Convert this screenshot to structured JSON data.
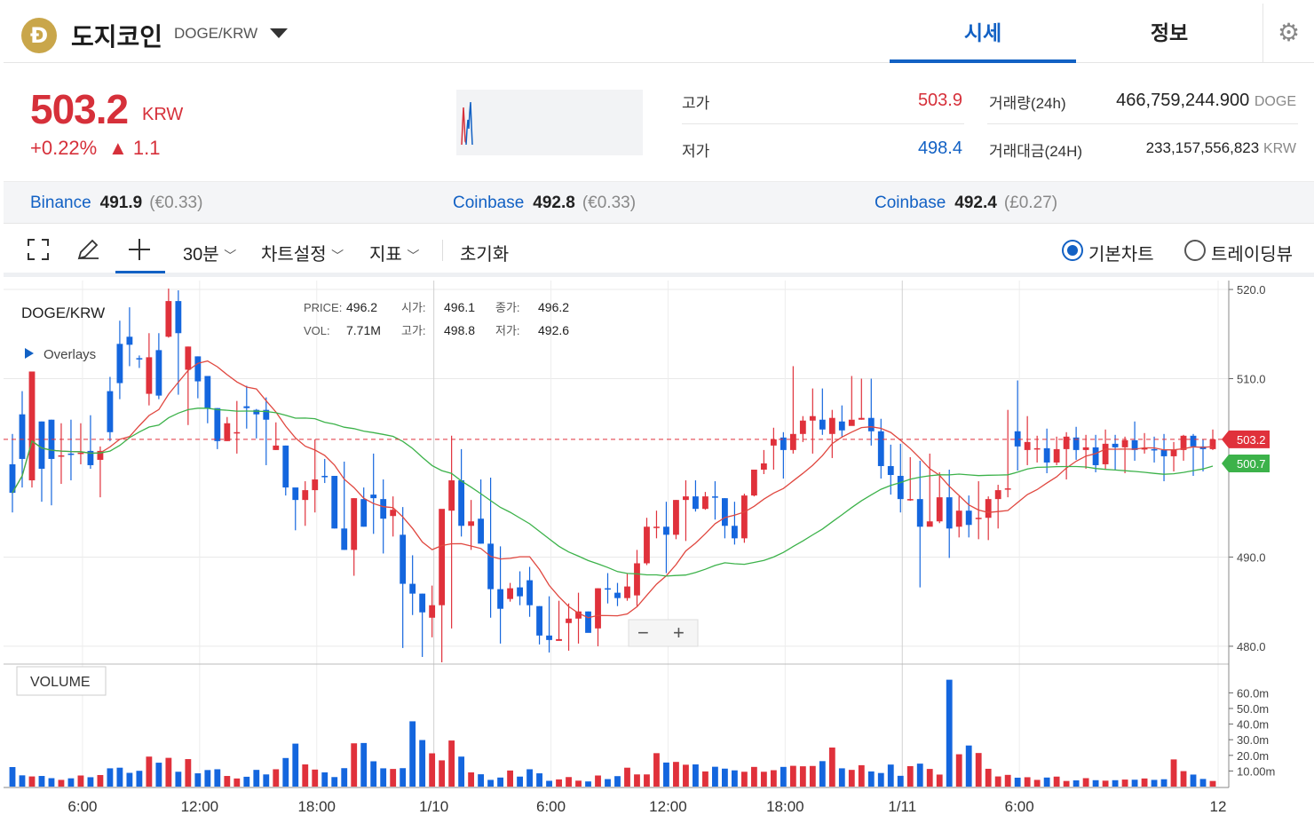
{
  "header": {
    "coin_symbol": "Đ",
    "coin_name": "도지코인",
    "pair": "DOGE/KRW",
    "tabs": [
      {
        "label": "시세",
        "active": true
      },
      {
        "label": "정보",
        "active": false
      }
    ]
  },
  "price": {
    "current": "503.2",
    "unit": "KRW",
    "change_pct": "+0.22%",
    "change_amt": "▲ 1.1"
  },
  "stats": {
    "high_label": "고가",
    "high_value": "503.9",
    "low_label": "저가",
    "low_value": "498.4",
    "volume_label": "거래량(24h)",
    "volume_value": "466,759,244.900",
    "volume_unit": "DOGE",
    "amount_label": "거래대금(24H)",
    "amount_value": "233,157,556,823",
    "amount_unit": "KRW"
  },
  "exchanges": [
    {
      "name": "Binance",
      "price": "491.9",
      "sub": "(€0.33)"
    },
    {
      "name": "Coinbase",
      "price": "492.8",
      "sub": "(€0.33)"
    },
    {
      "name": "Coinbase",
      "price": "492.4",
      "sub": "(£0.27)"
    }
  ],
  "toolbar": {
    "interval": "30분",
    "chart_settings": "차트설정",
    "indicators": "지표",
    "reset": "초기화",
    "basic_chart": "기본차트",
    "trading_view": "트레이딩뷰"
  },
  "chart_data": {
    "type": "candlestick",
    "title": "DOGE/KRW",
    "overlays_label": "Overlays",
    "volume_label": "VOLUME",
    "legend": {
      "price_label": "PRICE:",
      "price": "496.2",
      "open_label": "시가:",
      "open": "496.1",
      "close_label": "종가:",
      "close": "496.2",
      "vol_label": "VOL:",
      "vol": "7.71M",
      "high_label": "고가:",
      "high": "498.8",
      "low_label": "저가:",
      "low": "492.6"
    },
    "y_ticks": [
      "520.0",
      "510.0",
      "490.0",
      "480.0"
    ],
    "y_range": [
      478.0,
      521.0
    ],
    "current_price_tag": "503.2",
    "ma_tag": "500.7",
    "volume_ticks": [
      "60.0m",
      "50.0m",
      "40.0m",
      "30.0m",
      "20.0m",
      "10.00m"
    ],
    "x_ticks": [
      "6:00",
      "12:00",
      "18:00",
      "1/10",
      "6:00",
      "12:00",
      "18:00",
      "1/11",
      "6:00",
      "12"
    ],
    "zoom_out": "−",
    "zoom_in": "+",
    "series": [
      {
        "name": "MA short",
        "color": "#e0473f"
      },
      {
        "name": "MA long",
        "color": "#3cb24a"
      }
    ],
    "candles": [
      [
        500.4,
        497.2,
        503.8,
        495.0
      ],
      [
        506.0,
        501.0,
        508.6,
        497.8
      ],
      [
        498.6,
        510.8,
        510.8,
        497.8
      ],
      [
        505.2,
        499.9,
        505.2,
        496.2
      ],
      [
        505.4,
        501.0,
        505.4,
        495.8
      ],
      [
        501.4,
        501.4,
        505.0,
        498.2
      ],
      [
        501.6,
        501.5,
        505.4,
        498.6
      ],
      [
        501.7,
        501.7,
        505.0,
        500.4
      ],
      [
        501.9,
        500.3,
        505.9,
        499.9
      ],
      [
        500.9,
        501.9,
        502.4,
        496.7
      ],
      [
        508.6,
        504.0,
        510.2,
        503.0
      ],
      [
        513.9,
        509.5,
        516.5,
        507.7
      ],
      [
        514.7,
        513.8,
        518.0,
        511.4
      ],
      [
        512.3,
        512.2,
        512.6,
        511.2
      ],
      [
        508.3,
        512.4,
        515.1,
        507.0
      ],
      [
        513.2,
        508.1,
        515.1,
        507.7
      ],
      [
        514.7,
        518.7,
        520.1,
        514.6
      ],
      [
        518.7,
        515.1,
        519.9,
        508.2
      ],
      [
        511.0,
        513.6,
        513.6,
        504.8
      ],
      [
        512.5,
        509.7,
        512.5,
        507.8
      ],
      [
        510.3,
        506.7,
        510.3,
        505.0
      ],
      [
        506.7,
        503.0,
        506.7,
        502.1
      ],
      [
        503.0,
        505.0,
        505.7,
        503.0
      ],
      [
        504.0,
        504.0,
        507.5,
        501.6
      ],
      [
        506.9,
        506.7,
        509.2,
        504.4
      ],
      [
        506.5,
        506.0,
        506.6,
        503.3
      ],
      [
        506.5,
        505.4,
        507.9,
        500.3
      ],
      [
        502.0,
        502.5,
        505.1,
        502.0
      ],
      [
        502.5,
        497.8,
        502.5,
        496.9
      ],
      [
        497.8,
        496.4,
        496.8,
        493.0
      ],
      [
        496.4,
        497.5,
        498.5,
        493.5
      ],
      [
        497.5,
        498.7,
        503.2,
        495.0
      ],
      [
        499.1,
        499.0,
        501.0,
        498.3
      ],
      [
        499.1,
        493.2,
        499.1,
        493.2
      ],
      [
        493.2,
        490.8,
        500.7,
        490.8
      ],
      [
        490.8,
        496.6,
        496.6,
        487.9
      ],
      [
        496.5,
        493.4,
        497.8,
        493.4
      ],
      [
        497.0,
        496.6,
        501.6,
        492.6
      ],
      [
        496.5,
        494.3,
        498.7,
        490.4
      ],
      [
        494.6,
        495.3,
        496.8,
        492.3
      ],
      [
        492.5,
        487.0,
        495.6,
        479.8
      ],
      [
        487.0,
        485.9,
        490.2,
        483.5
      ],
      [
        485.9,
        483.8,
        485.9,
        478.8
      ],
      [
        483.2,
        484.6,
        486.8,
        481.0
      ],
      [
        484.6,
        495.4,
        495.2,
        478.2
      ],
      [
        495.2,
        498.6,
        503.6,
        482.0
      ],
      [
        498.6,
        493.5,
        502.1,
        492.3
      ],
      [
        493.5,
        494.0,
        496.4,
        490.8
      ],
      [
        494.3,
        491.5,
        498.7,
        491.5
      ],
      [
        491.5,
        486.4,
        498.9,
        483.2
      ],
      [
        486.4,
        484.2,
        491.2,
        480.3
      ],
      [
        485.3,
        486.5,
        487.1,
        485.0
      ],
      [
        486.6,
        485.6,
        488.4,
        484.6
      ],
      [
        487.4,
        484.6,
        488.9,
        483.3
      ],
      [
        484.5,
        481.2,
        484.5,
        480.2
      ],
      [
        481.2,
        480.7,
        485.6,
        479.3
      ],
      [
        480.6,
        480.8,
        485.1,
        480.7
      ],
      [
        482.6,
        483.1,
        484.8,
        479.5
      ],
      [
        483.1,
        483.9,
        486.0,
        480.3
      ],
      [
        483.9,
        481.5,
        483.9,
        482.1
      ],
      [
        482.0,
        486.5,
        486.5,
        480.0
      ],
      [
        486.5,
        486.4,
        488.2,
        484.8
      ],
      [
        486.0,
        485.4,
        487.1,
        484.5
      ],
      [
        485.4,
        486.7,
        488.1,
        485.1
      ],
      [
        485.7,
        489.3,
        490.8,
        484.5
      ],
      [
        489.3,
        493.4,
        494.4,
        489.1
      ],
      [
        493.4,
        493.4,
        495.2,
        492.1
      ],
      [
        493.4,
        492.5,
        496.2,
        488.2
      ],
      [
        492.5,
        496.4,
        496.4,
        492.0
      ],
      [
        496.4,
        496.8,
        498.6,
        491.8
      ],
      [
        496.8,
        495.4,
        498.6,
        495.1
      ],
      [
        495.4,
        496.8,
        497.3,
        495.3
      ],
      [
        496.8,
        496.7,
        498.5,
        494.2
      ],
      [
        496.6,
        493.5,
        496.6,
        492.1
      ],
      [
        493.5,
        492.1,
        496.2,
        491.4
      ],
      [
        492.1,
        496.9,
        497.1,
        491.6
      ],
      [
        496.9,
        499.8,
        499.8,
        496.8
      ],
      [
        499.8,
        500.5,
        502.0,
        499.3
      ],
      [
        502.5,
        503.2,
        504.5,
        499.8
      ],
      [
        503.4,
        502.0,
        504.0,
        498.8
      ],
      [
        502.0,
        503.8,
        511.4,
        501.6
      ],
      [
        503.8,
        505.3,
        505.8,
        502.9
      ],
      [
        505.3,
        505.8,
        508.9,
        501.6
      ],
      [
        505.4,
        504.3,
        508.9,
        503.7
      ],
      [
        503.8,
        505.6,
        506.5,
        501.1
      ],
      [
        505.2,
        504.2,
        507.0,
        503.5
      ],
      [
        504.7,
        505.4,
        510.3,
        505.4
      ],
      [
        505.4,
        505.6,
        510.0,
        505.4
      ],
      [
        505.6,
        504.1,
        510.0,
        502.5
      ],
      [
        504.1,
        500.2,
        505.5,
        498.8
      ],
      [
        500.2,
        499.2,
        502.6,
        497.0
      ],
      [
        499.1,
        496.5,
        502.7,
        495.0
      ],
      [
        496.5,
        496.5,
        501.2,
        496.3
      ],
      [
        496.5,
        493.4,
        500.8,
        486.6
      ],
      [
        493.4,
        494.0,
        501.6,
        493.5
      ],
      [
        494.0,
        496.7,
        499.5,
        493.8
      ],
      [
        496.7,
        493.2,
        499.8,
        489.9
      ],
      [
        493.4,
        495.2,
        496.8,
        492.2
      ],
      [
        495.2,
        493.6,
        496.9,
        492.2
      ],
      [
        494.3,
        494.4,
        498.5,
        492.0
      ],
      [
        494.4,
        496.5,
        496.8,
        491.9
      ],
      [
        496.5,
        497.5,
        498.1,
        493.2
      ],
      [
        497.6,
        497.7,
        506.5,
        496.7
      ],
      [
        504.1,
        502.4,
        509.8,
        499.7
      ],
      [
        502.0,
        502.9,
        505.8,
        500.3
      ],
      [
        502.2,
        502.2,
        503.6,
        500.6
      ],
      [
        502.2,
        500.6,
        504.4,
        499.4
      ],
      [
        500.6,
        502.1,
        503.5,
        500.3
      ],
      [
        502.1,
        503.5,
        504.0,
        498.7
      ],
      [
        503.4,
        502.0,
        504.6,
        500.9
      ],
      [
        502.0,
        502.3,
        503.7,
        499.9
      ],
      [
        502.3,
        500.3,
        503.7,
        499.5
      ],
      [
        500.4,
        502.7,
        504.3,
        499.8
      ],
      [
        502.7,
        502.3,
        503.7,
        499.8
      ],
      [
        502.3,
        503.1,
        503.5,
        499.4
      ],
      [
        503.1,
        502.0,
        505.2,
        500.8
      ],
      [
        502.2,
        502.2,
        503.9,
        501.6
      ],
      [
        502.1,
        502.0,
        503.5,
        500.6
      ],
      [
        502.0,
        501.3,
        503.8,
        498.5
      ],
      [
        501.3,
        502.0,
        502.9,
        499.6
      ],
      [
        502.0,
        503.6,
        503.7,
        500.8
      ],
      [
        503.6,
        502.4,
        503.8,
        499.1
      ],
      [
        502.4,
        502.1,
        503.2,
        499.6
      ],
      [
        502.1,
        503.2,
        504.3,
        502.0
      ]
    ],
    "volumes_m": [
      12.5,
      7.2,
      6.5,
      6.8,
      5.4,
      4.3,
      5.3,
      7.1,
      6.0,
      7.4,
      11.7,
      12.1,
      8.8,
      10.1,
      19.2,
      15.3,
      18.4,
      9.5,
      17.6,
      8.5,
      10.6,
      11.1,
      6.8,
      5.2,
      6.3,
      10.7,
      7.8,
      11.1,
      18.3,
      27.5,
      14.2,
      10.9,
      9.1,
      6.1,
      11.8,
      27.7,
      27.9,
      16.2,
      11.7,
      11.3,
      11.8,
      41.8,
      29.8,
      21.3,
      16.8,
      29.5,
      19.2,
      9.1,
      7.9,
      4.3,
      5.8,
      10.3,
      6.4,
      11.1,
      8.5,
      3.7,
      4.6,
      6.1,
      3.8,
      3.3,
      7.1,
      4.8,
      6.7,
      12.1,
      7.8,
      7.8,
      21.4,
      15.4,
      15.8,
      14.0,
      14.2,
      9.7,
      12.7,
      11.5,
      10.4,
      9.5,
      12.6,
      9.5,
      10.5,
      12.6,
      13.3,
      13.0,
      13.2,
      16.3,
      25.0,
      11.7,
      10.7,
      13.7,
      9.7,
      8.7,
      14.1,
      6.9,
      13.1,
      14.7,
      11.3,
      7.7,
      68.4,
      20.7,
      26.3,
      21.5,
      11.4,
      6.5,
      7.5,
      5.7,
      6.0,
      4.3,
      5.8,
      6.4,
      3.6,
      4.0,
      5.4,
      4.1,
      3.8,
      4.1,
      4.5,
      4.4,
      5.2,
      4.3,
      4.7,
      17.4,
      9.9,
      7.7,
      4.9,
      3.6
    ]
  }
}
